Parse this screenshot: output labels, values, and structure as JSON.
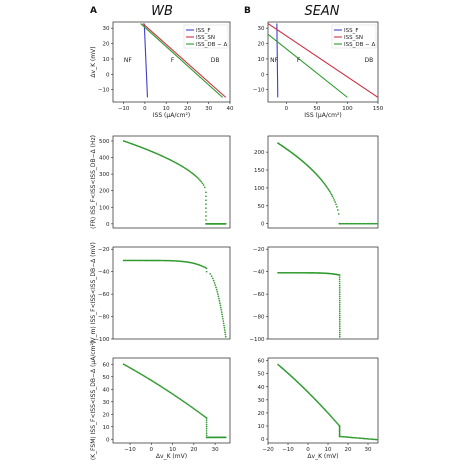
{
  "panel_letters": [
    "A",
    "B"
  ],
  "column_titles": [
    "WB",
    "SEAN"
  ],
  "colors": {
    "iss_f": "#3f3fcc",
    "iss_sn": "#cc3344",
    "iss_dbd": "#2b9a2b",
    "points": "#2e9a2e"
  },
  "chart_data": [
    {
      "type": "line",
      "column": "WB",
      "row": 0,
      "xlabel": "ISS (μA/cm²)",
      "ylabel": "Δv_K (mV)",
      "xlim": [
        -15,
        40
      ],
      "ylim": [
        -18,
        34
      ],
      "xticks": [
        -10,
        0,
        10,
        20,
        30,
        40
      ],
      "yticks": [
        -10,
        0,
        10,
        20,
        30
      ],
      "legend": {
        "position": "top-right",
        "entries": [
          "ISS_F",
          "ISS_SN",
          "ISS_DB − Δ"
        ]
      },
      "regions": [
        {
          "label": "NF",
          "x": -8,
          "y": 8
        },
        {
          "label": "F",
          "x": 13,
          "y": 8
        },
        {
          "label": "DB",
          "x": 33,
          "y": 8
        }
      ],
      "series": [
        {
          "name": "ISS_F",
          "color": "iss_f",
          "x": [
            1.2,
            -0.3
          ],
          "y": [
            -15,
            33
          ]
        },
        {
          "name": "ISS_SN",
          "color": "iss_sn",
          "x": [
            -1,
            38
          ],
          "y": [
            33,
            -15
          ]
        },
        {
          "name": "ISS_DB − Δ",
          "color": "iss_dbd",
          "x": [
            -2,
            36.5
          ],
          "y": [
            33,
            -15
          ]
        }
      ]
    },
    {
      "type": "line",
      "column": "SEAN",
      "row": 0,
      "xlabel": "ISS (μA/cm²)",
      "ylabel": "",
      "xlim": [
        -30,
        150
      ],
      "ylim": [
        -18,
        34
      ],
      "xticks": [
        0,
        50,
        100,
        150
      ],
      "yticks": [
        -10,
        0,
        10,
        20,
        30
      ],
      "legend": {
        "position": "top-right",
        "entries": [
          "ISS_F",
          "ISS_SN",
          "ISS_DB − Δ"
        ]
      },
      "regions": [
        {
          "label": "NF",
          "x": -20,
          "y": 8
        },
        {
          "label": "F",
          "x": 20,
          "y": 8
        },
        {
          "label": "DB",
          "x": 135,
          "y": 8
        }
      ],
      "series": [
        {
          "name": "ISS_F",
          "color": "iss_f",
          "x": [
            -14,
            -15.5
          ],
          "y": [
            -15,
            33
          ]
        },
        {
          "name": "ISS_SN",
          "color": "iss_sn",
          "x": [
            -30,
            150
          ],
          "y": [
            33,
            -15
          ]
        },
        {
          "name": "ISS_DB − Δ",
          "color": "iss_dbd",
          "x": [
            -30,
            100
          ],
          "y": [
            26,
            -15
          ]
        }
      ]
    },
    {
      "type": "scatter",
      "column": "WB",
      "row": 1,
      "ylabel": "⟨FR⟩ ISS_F<ISS<ISS_DB−Δ (Hz)",
      "xlim": [
        -18,
        37
      ],
      "ylim": [
        -25,
        530
      ],
      "yticks": [
        0,
        100,
        200,
        300,
        400,
        500
      ],
      "curve": {
        "kind": "sqrt",
        "x0": -13,
        "xc": 25.7,
        "y0": 500,
        "yc": 190,
        "p": 0.55,
        "tail_from": 25.7,
        "tail_to": 35,
        "tail_y": 0
      }
    },
    {
      "type": "scatter",
      "column": "SEAN",
      "row": 1,
      "ylabel": "",
      "xlim": [
        -20,
        35
      ],
      "ylim": [
        -12,
        245
      ],
      "yticks": [
        0,
        50,
        100,
        150,
        200
      ],
      "curve": {
        "kind": "sqrt",
        "x0": -15,
        "xc": 15.8,
        "y0": 225,
        "yc": 0,
        "p": 0.5,
        "tail_from": 15.8,
        "tail_to": 35,
        "tail_y": 0
      }
    },
    {
      "type": "scatter",
      "column": "WB",
      "row": 2,
      "ylabel": "⟨V_m⟩ ISS_F<ISS<ISS_DB−Δ (mV)",
      "xlim": [
        -18,
        37
      ],
      "ylim": [
        -100,
        -18
      ],
      "yticks": [
        -100,
        -80,
        -60,
        -40,
        -20
      ],
      "curve": {
        "kind": "flatdrop",
        "x0": -13,
        "xc": 26,
        "y0": -30,
        "yc": -37,
        "p": 3,
        "drop_from": 26,
        "drop_to": 35,
        "drop_y0": -40,
        "drop_y1": -98
      }
    },
    {
      "type": "scatter",
      "column": "SEAN",
      "row": 2,
      "ylabel": "",
      "xlim": [
        -20,
        35
      ],
      "ylim": [
        -100,
        -18
      ],
      "yticks": [
        -100,
        -80,
        -60,
        -40,
        -20
      ],
      "curve": {
        "kind": "flatdrop",
        "x0": -15,
        "xc": 15.8,
        "y0": -41,
        "yc": -43,
        "p": 3,
        "drop_from": 15.8,
        "drop_to": 15.9,
        "drop_y0": -43,
        "drop_y1": -98
      }
    },
    {
      "type": "scatter",
      "column": "WB",
      "row": 3,
      "xlabel": "Δv_K (mV)",
      "ylabel": "⟨K_FSM⟩ ISS_F<ISS<ISS_DB−Δ (μA/cm²)",
      "xlim": [
        -18,
        37
      ],
      "ylim": [
        -3,
        65
      ],
      "xticks": [
        -10,
        0,
        10,
        20,
        30
      ],
      "yticks": [
        0,
        10,
        20,
        30,
        40,
        50,
        60
      ],
      "curve": {
        "kind": "decline",
        "x0": -13,
        "xc": 26,
        "y0": 60,
        "yc": 17,
        "tail_from": 26,
        "tail_to": 35,
        "tail_y0": 1.5,
        "tail_y1": 1.5
      }
    },
    {
      "type": "scatter",
      "column": "SEAN",
      "row": 3,
      "xlabel": "Δv_K (mV)",
      "ylabel": "",
      "xlim": [
        -20,
        35
      ],
      "ylim": [
        -3,
        62
      ],
      "xticks": [
        -20,
        -10,
        0,
        10,
        20,
        30
      ],
      "yticks": [
        0,
        10,
        20,
        30,
        40,
        50,
        60
      ],
      "curve": {
        "kind": "decline",
        "x0": -15,
        "xc": 15.8,
        "y0": 57,
        "yc": 10,
        "tail_from": 15.8,
        "tail_to": 35,
        "tail_y0": 2,
        "tail_y1": -0.5
      }
    }
  ]
}
